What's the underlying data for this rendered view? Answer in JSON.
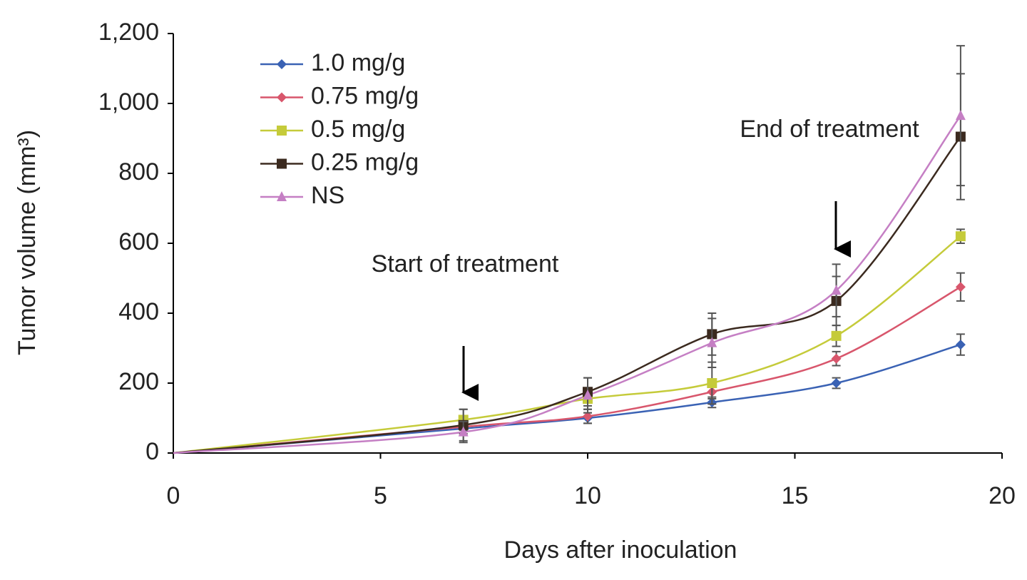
{
  "chart_data": {
    "type": "line",
    "x_label": "Days after inoculation",
    "y_label": "Tumor volume (mm³)",
    "x": [
      0,
      7,
      10,
      13,
      16,
      19
    ],
    "series": [
      {
        "name": "1.0 mg/g",
        "color": "#3a62b4",
        "marker": "diamond",
        "values": [
          0,
          70,
          100,
          145,
          200,
          310
        ],
        "errors": [
          null,
          15,
          15,
          15,
          15,
          30
        ]
      },
      {
        "name": "0.75 mg/g",
        "color": "#d8566c",
        "marker": "diamond",
        "values": [
          0,
          75,
          105,
          175,
          270,
          475
        ],
        "errors": [
          null,
          25,
          20,
          20,
          20,
          40
        ]
      },
      {
        "name": "0.5 mg/g",
        "color": "#c5cb3a",
        "marker": "square",
        "values": [
          0,
          95,
          155,
          200,
          335,
          620
        ],
        "errors": [
          null,
          30,
          30,
          60,
          30,
          20
        ]
      },
      {
        "name": "0.25 mg/g",
        "color": "#3b2a1f",
        "marker": "square",
        "values": [
          0,
          80,
          175,
          340,
          435,
          905
        ],
        "errors": [
          null,
          45,
          40,
          60,
          70,
          180
        ]
      },
      {
        "name": "NS",
        "color": "#c57fc4",
        "marker": "triangle",
        "values": [
          0,
          60,
          165,
          315,
          465,
          965
        ],
        "errors": [
          null,
          30,
          50,
          70,
          75,
          200
        ]
      }
    ],
    "xlim": [
      0,
      20
    ],
    "xticks": [
      0,
      5,
      10,
      15,
      20
    ],
    "ylim": [
      0,
      1200
    ],
    "yticks": [
      0,
      200,
      400,
      600,
      800,
      {
        "value": 1000,
        "label": "1,000"
      },
      {
        "value": 1200,
        "label": "1,200"
      }
    ],
    "grid": false,
    "legend": "upper left",
    "annotations": [
      "Start of treatment",
      "End of treatment"
    ]
  }
}
